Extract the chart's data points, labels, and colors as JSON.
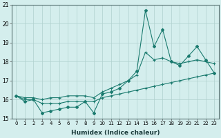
{
  "xlabel": "Humidex (Indice chaleur)",
  "x": [
    0,
    1,
    2,
    3,
    4,
    5,
    6,
    7,
    8,
    9,
    10,
    11,
    12,
    13,
    14,
    15,
    16,
    17,
    18,
    19,
    20,
    21,
    22,
    23
  ],
  "line_main": [
    16.2,
    15.9,
    16.0,
    15.3,
    15.4,
    15.5,
    15.6,
    15.6,
    15.9,
    15.3,
    16.3,
    16.4,
    16.6,
    17.0,
    17.5,
    20.7,
    18.8,
    19.7,
    18.0,
    17.8,
    18.3,
    18.8,
    18.1,
    17.4
  ],
  "line_low": [
    16.2,
    16.0,
    16.0,
    15.8,
    15.8,
    15.8,
    15.9,
    15.9,
    15.9,
    15.9,
    16.1,
    16.2,
    16.3,
    16.4,
    16.5,
    16.6,
    16.7,
    16.8,
    16.9,
    17.0,
    17.1,
    17.2,
    17.3,
    17.4
  ],
  "line_high": [
    16.2,
    16.1,
    16.1,
    16.0,
    16.1,
    16.1,
    16.2,
    16.2,
    16.2,
    16.1,
    16.4,
    16.6,
    16.8,
    17.0,
    17.3,
    18.5,
    18.1,
    18.2,
    18.0,
    17.9,
    18.0,
    18.1,
    18.0,
    17.9
  ],
  "line_color": "#1a7a6e",
  "bg_color": "#d4eeed",
  "grid_color": "#b0d0ce",
  "ylim": [
    15,
    21
  ],
  "yticks": [
    15,
    16,
    17,
    18,
    19,
    20,
    21
  ],
  "xlim": [
    -0.5,
    23.5
  ],
  "xticks": [
    0,
    1,
    2,
    3,
    4,
    5,
    6,
    7,
    8,
    9,
    10,
    11,
    12,
    13,
    14,
    15,
    16,
    17,
    18,
    19,
    20,
    21,
    22,
    23
  ]
}
